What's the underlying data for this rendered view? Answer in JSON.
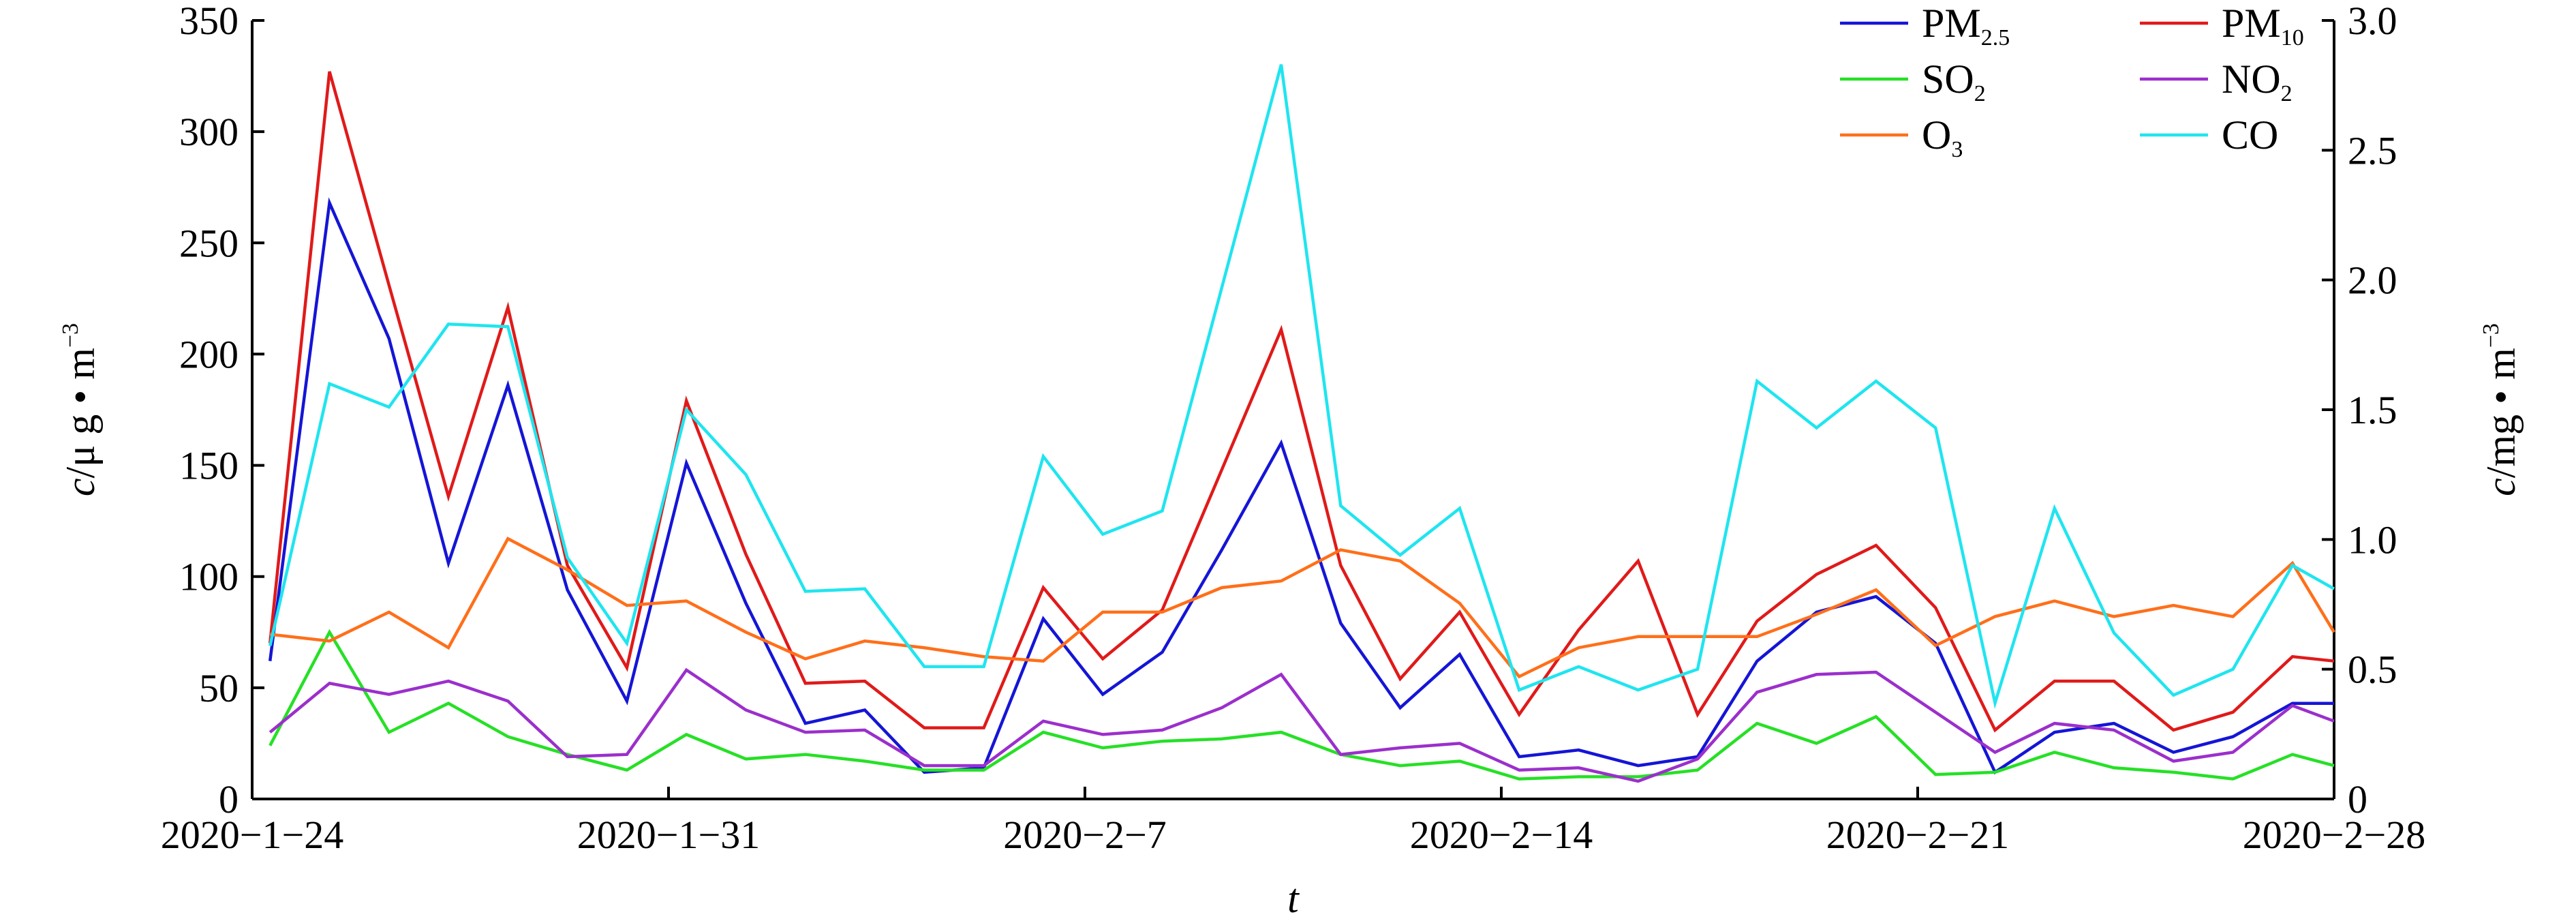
{
  "chart_data": {
    "type": "line",
    "xlabel": "t",
    "ylabel_left": {
      "italic": "c",
      "rest": "/μ g • m",
      "sup": "−3"
    },
    "ylabel_right": {
      "italic": "c",
      "rest": "/mg • m",
      "sup": "−3"
    },
    "y_left_range": [
      0,
      350
    ],
    "y_right_range": [
      0,
      3.0
    ],
    "y_left_ticks": [
      "0",
      "50",
      "100",
      "150",
      "200",
      "250",
      "300",
      "350"
    ],
    "y_right_ticks": [
      "0",
      "0.5",
      "1.0",
      "1.5",
      "2.0",
      "2.5",
      "3.0"
    ],
    "x_ticks": [
      {
        "label": "2020−1−24",
        "day": 0
      },
      {
        "label": "2020−1−31",
        "day": 7
      },
      {
        "label": "2020−2−7",
        "day": 14
      },
      {
        "label": "2020−2−14",
        "day": 21
      },
      {
        "label": "2020−2−21",
        "day": 28
      },
      {
        "label": "2020−2−28",
        "day": 35
      }
    ],
    "x_range": [
      0,
      35
    ],
    "grid": false,
    "legend_position": "top-right",
    "series": [
      {
        "key": "pm25",
        "legend_main": "PM",
        "legend_sub": "2.5",
        "color": "#1515d6",
        "axis": "left",
        "x": [
          0.3,
          1.3,
          2.3,
          3.3,
          4.3,
          5.3,
          6.3,
          7.3,
          8.3,
          9.3,
          10.3,
          11.3,
          12.3,
          13.3,
          14.3,
          15.3,
          16.3,
          17.3,
          18.3,
          19.3,
          20.3,
          21.3,
          22.3,
          23.3,
          24.3,
          25.3,
          26.3,
          27.3,
          28.3,
          29.3,
          30.3,
          31.3,
          32.3,
          33.3,
          34.3,
          35.0
        ],
        "values": [
          62,
          268,
          207,
          106,
          186,
          94,
          44,
          151,
          88,
          34,
          40,
          12,
          14,
          81,
          47,
          66,
          112,
          160,
          79,
          41,
          65,
          19,
          22,
          15,
          19,
          62,
          84,
          91,
          70,
          12,
          30,
          34,
          21,
          28,
          43,
          43
        ]
      },
      {
        "key": "pm10",
        "legend_main": "PM",
        "legend_sub": "10",
        "color": "#e01a1a",
        "axis": "left",
        "x": [
          0.3,
          1.3,
          2.3,
          3.3,
          4.3,
          5.3,
          6.3,
          7.3,
          8.3,
          9.3,
          10.3,
          11.3,
          12.3,
          13.3,
          14.3,
          15.3,
          16.3,
          17.3,
          18.3,
          19.3,
          20.3,
          21.3,
          22.3,
          23.3,
          24.3,
          25.3,
          26.3,
          27.3,
          28.3,
          29.3,
          30.3,
          31.3,
          32.3,
          33.3,
          34.3,
          35.0
        ],
        "values": [
          70,
          327,
          231,
          136,
          221,
          105,
          59,
          179,
          110,
          52,
          53,
          32,
          32,
          95,
          63,
          85,
          148,
          211,
          105,
          54,
          84,
          38,
          76,
          107,
          38,
          80,
          101,
          114,
          86,
          31,
          53,
          53,
          31,
          39,
          64,
          62
        ]
      },
      {
        "key": "so2",
        "legend_main": "SO",
        "legend_sub": "2",
        "color": "#26e026",
        "axis": "left",
        "x": [
          0.3,
          1.3,
          2.3,
          3.3,
          4.3,
          5.3,
          6.3,
          7.3,
          8.3,
          9.3,
          10.3,
          11.3,
          12.3,
          13.3,
          14.3,
          15.3,
          16.3,
          17.3,
          18.3,
          19.3,
          20.3,
          21.3,
          22.3,
          23.3,
          24.3,
          25.3,
          26.3,
          27.3,
          28.3,
          29.3,
          30.3,
          31.3,
          32.3,
          33.3,
          34.3,
          35.0
        ],
        "values": [
          24,
          75,
          30,
          43,
          28,
          20,
          13,
          29,
          18,
          20,
          17,
          13,
          13,
          30,
          23,
          26,
          27,
          30,
          20,
          15,
          17,
          9,
          10,
          10,
          13,
          34,
          25,
          37,
          11,
          12,
          21,
          14,
          12,
          9,
          20,
          15
        ]
      },
      {
        "key": "no2",
        "legend_main": "NO",
        "legend_sub": "2",
        "color": "#9b2fcc",
        "axis": "left",
        "x": [
          0.3,
          1.3,
          2.3,
          3.3,
          4.3,
          5.3,
          6.3,
          7.3,
          8.3,
          9.3,
          10.3,
          11.3,
          12.3,
          13.3,
          14.3,
          15.3,
          16.3,
          17.3,
          18.3,
          19.3,
          20.3,
          21.3,
          22.3,
          23.3,
          24.3,
          25.3,
          26.3,
          27.3,
          28.3,
          29.3,
          30.3,
          31.3,
          32.3,
          33.3,
          34.3,
          35.0
        ],
        "values": [
          30,
          52,
          47,
          53,
          44,
          19,
          20,
          58,
          40,
          30,
          31,
          15,
          15,
          35,
          29,
          31,
          41,
          56,
          20,
          23,
          25,
          13,
          14,
          8,
          18,
          48,
          56,
          57,
          39,
          21,
          34,
          31,
          17,
          21,
          42,
          35
        ]
      },
      {
        "key": "o3",
        "legend_main": "O",
        "legend_sub": "3",
        "color": "#ff6f1a",
        "axis": "left",
        "x": [
          0.3,
          1.3,
          2.3,
          3.3,
          4.3,
          5.3,
          6.3,
          7.3,
          8.3,
          9.3,
          10.3,
          11.3,
          12.3,
          13.3,
          14.3,
          15.3,
          16.3,
          17.3,
          18.3,
          19.3,
          20.3,
          21.3,
          22.3,
          23.3,
          24.3,
          25.3,
          26.3,
          27.3,
          28.3,
          29.3,
          30.3,
          31.3,
          32.3,
          33.3,
          34.3,
          35.0
        ],
        "values": [
          74,
          71,
          84,
          68,
          117,
          103,
          87,
          89,
          75,
          63,
          71,
          68,
          64,
          62,
          84,
          84,
          95,
          98,
          112,
          107,
          88,
          55,
          68,
          73,
          73,
          73,
          83,
          94,
          69,
          82,
          89,
          82,
          87,
          82,
          106,
          75
        ]
      },
      {
        "key": "co",
        "legend_main": "CO",
        "legend_sub": "",
        "color": "#1fe5ef",
        "axis": "right",
        "x": [
          0.3,
          1.3,
          2.3,
          3.3,
          4.3,
          5.3,
          6.3,
          7.3,
          8.3,
          9.3,
          10.3,
          11.3,
          12.3,
          13.3,
          14.3,
          15.3,
          16.3,
          17.3,
          18.3,
          19.3,
          20.3,
          21.3,
          22.3,
          23.3,
          24.3,
          25.3,
          26.3,
          27.3,
          28.3,
          29.3,
          30.3,
          31.3,
          32.3,
          33.3,
          34.3,
          35.0
        ],
        "values": [
          0.59,
          1.6,
          1.51,
          1.83,
          1.82,
          0.93,
          0.6,
          1.5,
          1.25,
          0.8,
          0.81,
          0.51,
          0.51,
          1.32,
          1.02,
          1.11,
          1.97,
          2.83,
          1.13,
          0.94,
          1.12,
          0.42,
          0.51,
          0.42,
          0.5,
          1.61,
          1.43,
          1.61,
          1.43,
          0.37,
          1.12,
          0.64,
          0.4,
          0.5,
          0.9,
          0.81
        ]
      }
    ]
  }
}
